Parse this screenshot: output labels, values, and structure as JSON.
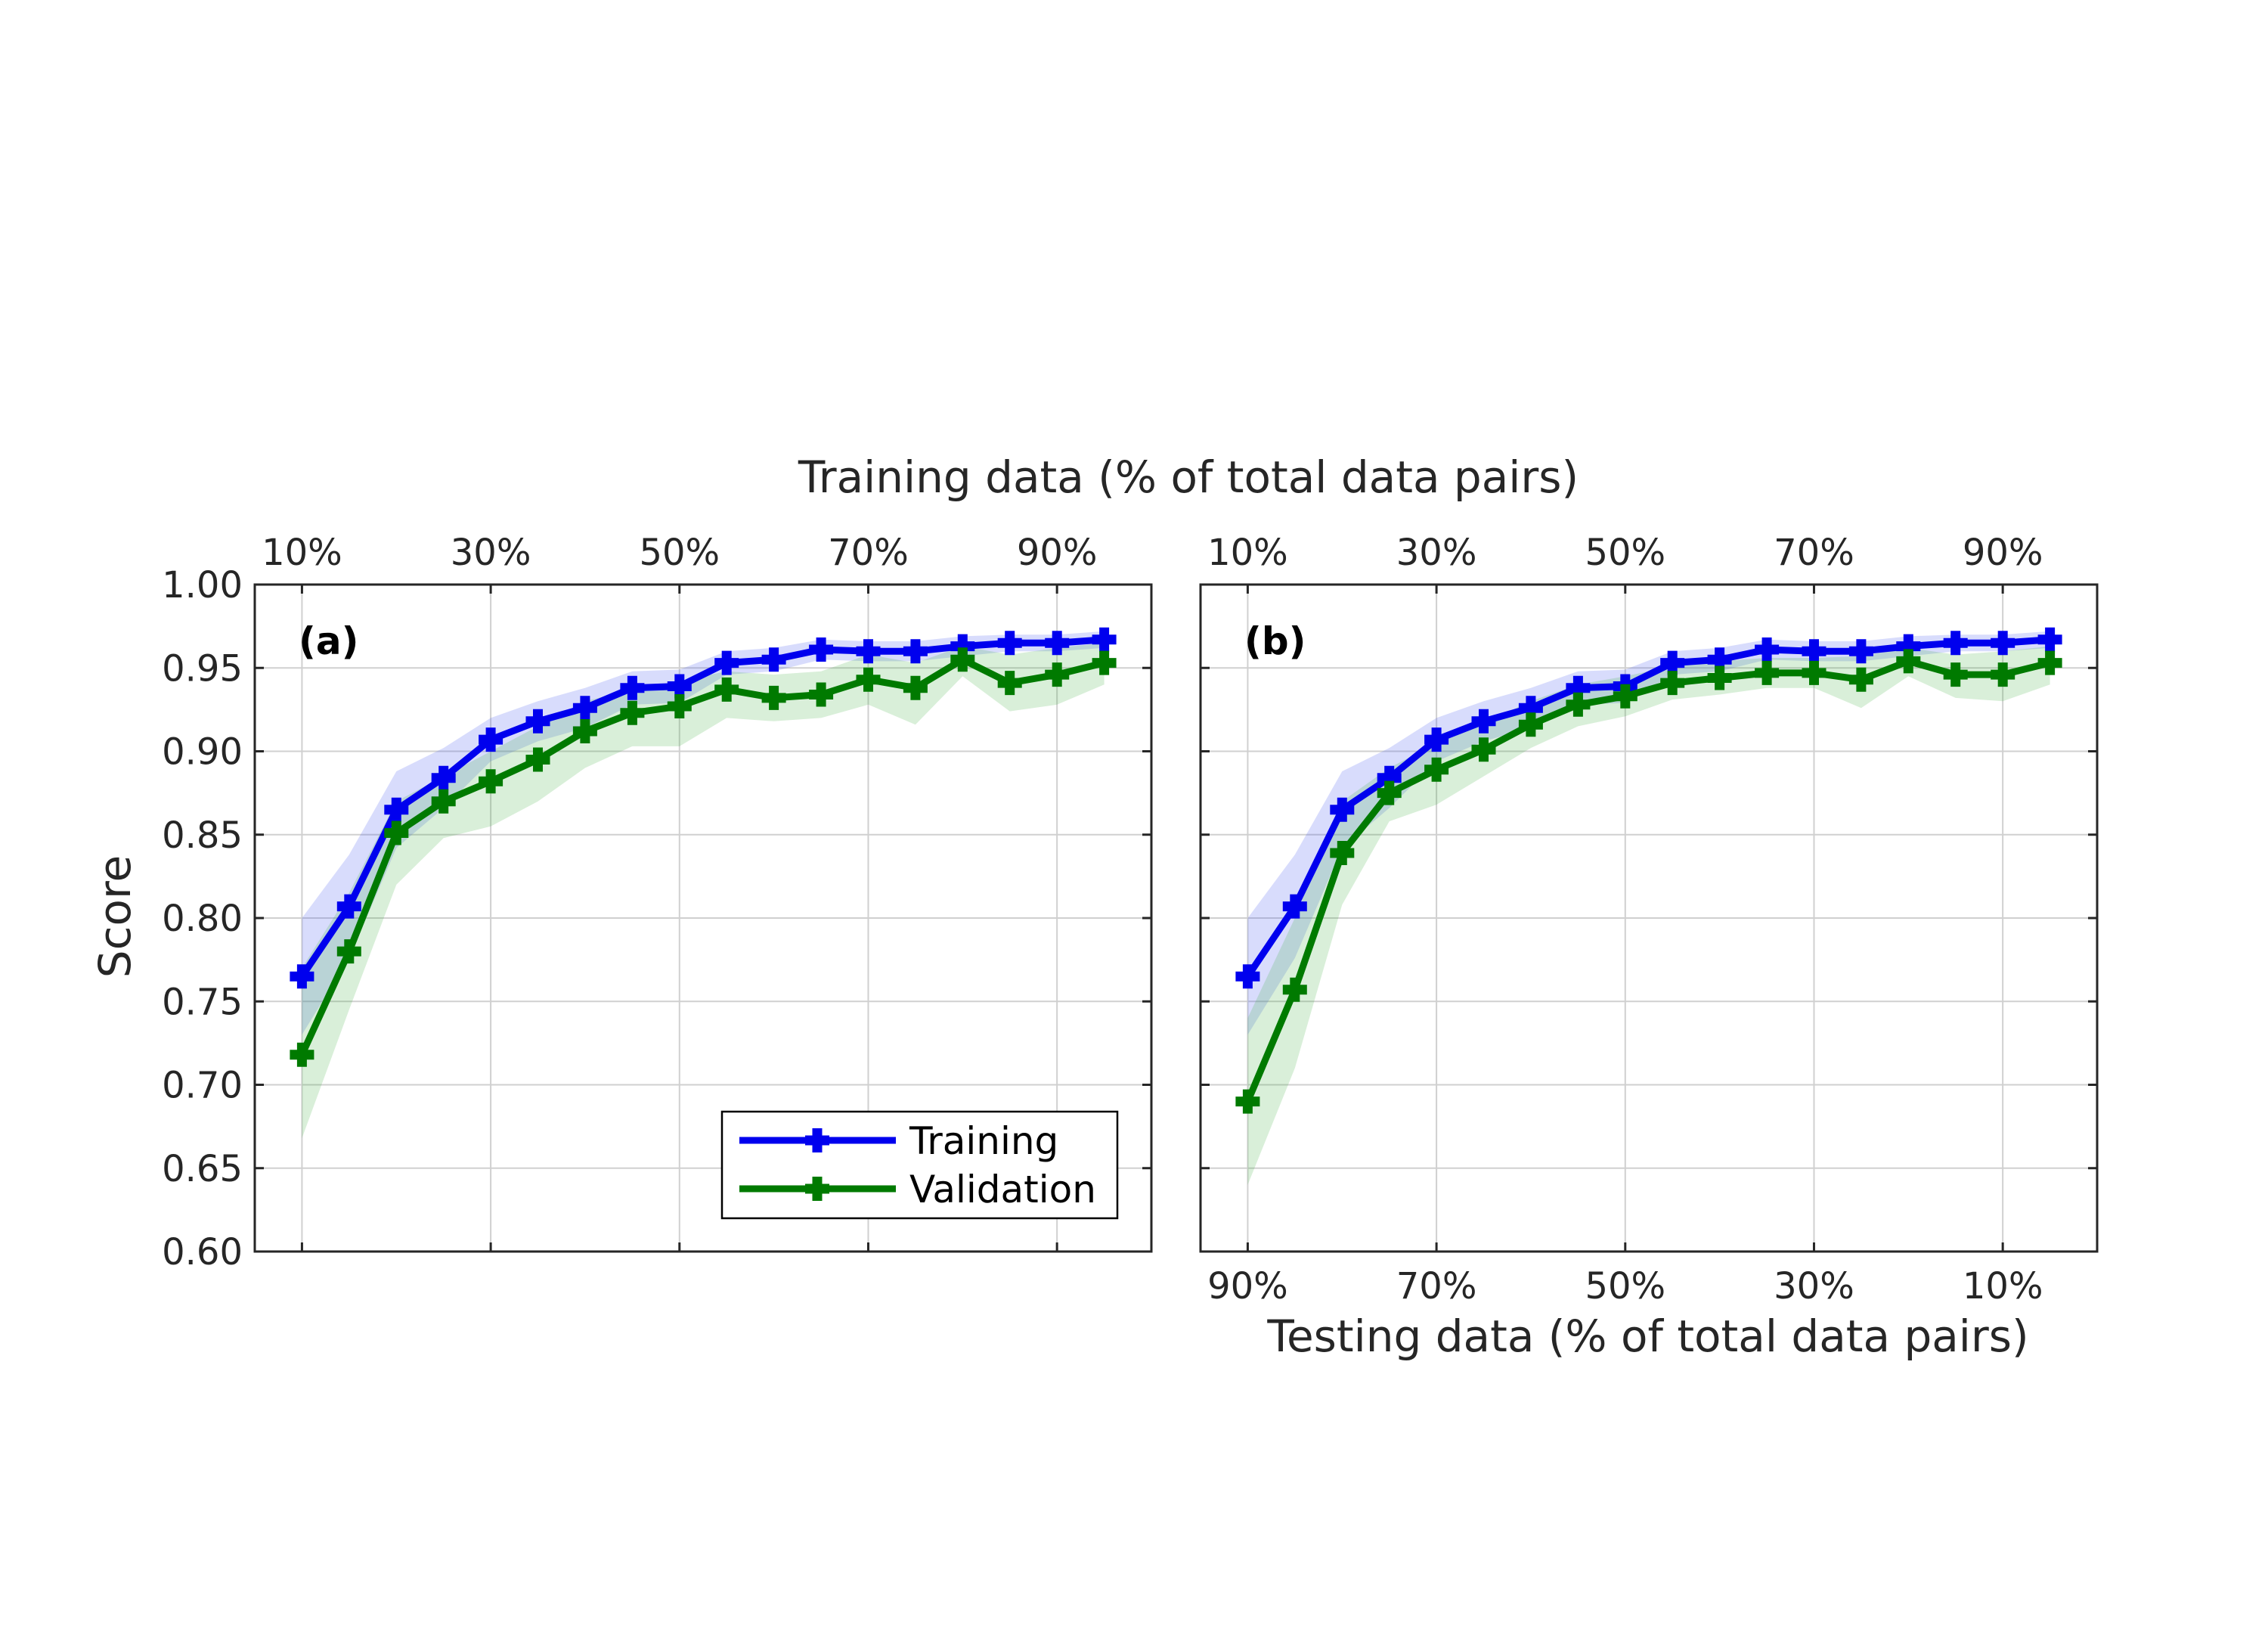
{
  "figure": {
    "top_axis_label": "Training data (% of total data pairs)",
    "bottom_axis_label": "Testing data (% of total data pairs)",
    "ylabel": "Score"
  },
  "legend": {
    "location": "lower-right",
    "entries": [
      "Training",
      "Validation"
    ]
  },
  "colors": {
    "training": "#0000ee",
    "validation": "#007a00",
    "training_band": "#4d5ef0",
    "validation_band": "#3fae3f",
    "grid": "#d0d0d0",
    "axes": "#262626"
  },
  "chart_data": [
    {
      "type": "line",
      "panel_label": "(a)",
      "x": [
        10,
        15,
        20,
        25,
        30,
        35,
        40,
        45,
        50,
        55,
        60,
        65,
        70,
        75,
        80,
        85,
        90,
        95
      ],
      "xlim": [
        5,
        100
      ],
      "ylim": [
        0.6,
        1.0
      ],
      "grid": true,
      "x_ticks_top": [
        10,
        30,
        50,
        70,
        90
      ],
      "x_tick_labels_top": [
        "10%",
        "30%",
        "50%",
        "70%",
        "90%"
      ],
      "y_ticks": [
        0.6,
        0.65,
        0.7,
        0.75,
        0.8,
        0.85,
        0.9,
        0.95,
        1.0
      ],
      "y_tick_labels": [
        "0.60",
        "0.65",
        "0.70",
        "0.75",
        "0.80",
        "0.85",
        "0.90",
        "0.95",
        "1.00"
      ],
      "series": [
        {
          "name": "Training",
          "values": [
            0.765,
            0.807,
            0.865,
            0.884,
            0.907,
            0.918,
            0.926,
            0.938,
            0.939,
            0.953,
            0.955,
            0.961,
            0.96,
            0.96,
            0.963,
            0.965,
            0.965,
            0.967
          ],
          "band_upper": [
            0.8,
            0.838,
            0.888,
            0.902,
            0.92,
            0.93,
            0.938,
            0.948,
            0.949,
            0.96,
            0.962,
            0.967,
            0.966,
            0.966,
            0.969,
            0.97,
            0.97,
            0.972
          ],
          "band_lower": [
            0.73,
            0.776,
            0.842,
            0.866,
            0.894,
            0.906,
            0.914,
            0.928,
            0.929,
            0.946,
            0.948,
            0.955,
            0.954,
            0.954,
            0.957,
            0.96,
            0.96,
            0.962
          ]
        },
        {
          "name": "Validation",
          "values": [
            0.718,
            0.78,
            0.851,
            0.87,
            0.882,
            0.895,
            0.912,
            0.923,
            0.927,
            0.937,
            0.932,
            0.934,
            0.943,
            0.938,
            0.955,
            0.941,
            0.946,
            0.953
          ],
          "band_upper": [
            0.77,
            0.815,
            0.87,
            0.885,
            0.9,
            0.915,
            0.93,
            0.937,
            0.942,
            0.948,
            0.946,
            0.948,
            0.958,
            0.953,
            0.963,
            0.958,
            0.962,
            0.965
          ],
          "band_lower": [
            0.668,
            0.745,
            0.82,
            0.848,
            0.855,
            0.87,
            0.89,
            0.903,
            0.903,
            0.92,
            0.918,
            0.92,
            0.928,
            0.916,
            0.945,
            0.924,
            0.928,
            0.94
          ]
        }
      ]
    },
    {
      "type": "line",
      "panel_label": "(b)",
      "x": [
        10,
        15,
        20,
        25,
        30,
        35,
        40,
        45,
        50,
        55,
        60,
        65,
        70,
        75,
        80,
        85,
        90,
        95
      ],
      "xlim": [
        5,
        100
      ],
      "ylim": [
        0.6,
        1.0
      ],
      "grid": true,
      "x_ticks_top": [
        10,
        30,
        50,
        70,
        90
      ],
      "x_tick_labels_top": [
        "10%",
        "30%",
        "50%",
        "70%",
        "90%"
      ],
      "x_ticks_bottom": [
        10,
        30,
        50,
        70,
        90
      ],
      "x_tick_labels_bottom": [
        "90%",
        "70%",
        "50%",
        "30%",
        "10%"
      ],
      "y_ticks": [
        0.6,
        0.65,
        0.7,
        0.75,
        0.8,
        0.85,
        0.9,
        0.95,
        1.0
      ],
      "series": [
        {
          "name": "Training",
          "values": [
            0.765,
            0.807,
            0.865,
            0.884,
            0.907,
            0.918,
            0.926,
            0.938,
            0.939,
            0.953,
            0.955,
            0.961,
            0.96,
            0.96,
            0.963,
            0.965,
            0.965,
            0.967
          ],
          "band_upper": [
            0.8,
            0.838,
            0.888,
            0.902,
            0.92,
            0.93,
            0.938,
            0.948,
            0.949,
            0.96,
            0.962,
            0.967,
            0.966,
            0.966,
            0.969,
            0.97,
            0.97,
            0.972
          ],
          "band_lower": [
            0.73,
            0.776,
            0.842,
            0.866,
            0.894,
            0.906,
            0.914,
            0.928,
            0.929,
            0.946,
            0.948,
            0.955,
            0.954,
            0.954,
            0.957,
            0.96,
            0.96,
            0.962
          ]
        },
        {
          "name": "Validation",
          "values": [
            0.69,
            0.757,
            0.839,
            0.875,
            0.889,
            0.901,
            0.916,
            0.928,
            0.933,
            0.941,
            0.944,
            0.947,
            0.947,
            0.943,
            0.954,
            0.946,
            0.946,
            0.953
          ],
          "band_upper": [
            0.74,
            0.8,
            0.87,
            0.89,
            0.905,
            0.917,
            0.93,
            0.94,
            0.945,
            0.951,
            0.954,
            0.956,
            0.956,
            0.957,
            0.962,
            0.958,
            0.96,
            0.963
          ],
          "band_lower": [
            0.64,
            0.71,
            0.808,
            0.858,
            0.868,
            0.885,
            0.902,
            0.915,
            0.921,
            0.931,
            0.934,
            0.938,
            0.938,
            0.926,
            0.945,
            0.932,
            0.93,
            0.94
          ]
        }
      ]
    }
  ]
}
